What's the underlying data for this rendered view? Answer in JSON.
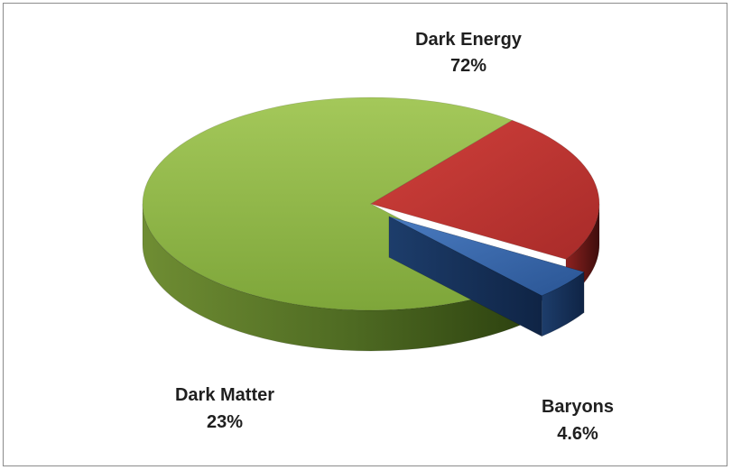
{
  "chart_data": {
    "type": "pie",
    "title": "",
    "slices": [
      {
        "label": "Dark Energy",
        "value": 72,
        "display": "72%",
        "color": "#8db640",
        "exploded": false
      },
      {
        "label": "Dark Matter",
        "value": 23,
        "display": "23%",
        "color": "#b03230",
        "exploded": false
      },
      {
        "label": "Baryons",
        "value": 4.6,
        "display": "4.6%",
        "color": "#2f5f9e",
        "exploded": true
      }
    ],
    "style": "3d-exploded"
  }
}
